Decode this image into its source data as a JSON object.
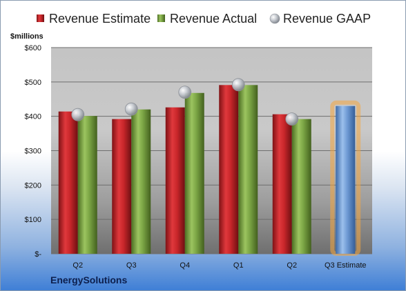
{
  "company": "EnergySolutions",
  "chart_data": {
    "type": "bar",
    "categories": [
      "Q2",
      "Q3",
      "Q4",
      "Q1",
      "Q2",
      "Q3 Estimate"
    ],
    "ylabel": "$millions",
    "ylim": [
      0,
      600
    ],
    "yticks": [
      0,
      100,
      200,
      300,
      400,
      500,
      600
    ],
    "ytick_labels": [
      "$-",
      "$100",
      "$200",
      "$300",
      "$400",
      "$500",
      "$600"
    ],
    "grid": true,
    "legend": "top",
    "series": [
      {
        "name": "Revenue Estimate",
        "kind": "bar",
        "color": "#c0262a",
        "values": [
          414,
          392,
          426,
          491,
          406,
          null
        ]
      },
      {
        "name": "Revenue Actual",
        "kind": "bar",
        "color": "#78a040",
        "values": [
          401,
          420,
          468,
          491,
          392,
          null
        ]
      },
      {
        "name": "Revenue GAAP",
        "kind": "marker",
        "color": "#b8bcc4",
        "values": [
          405,
          421,
          470,
          492,
          392,
          null
        ]
      },
      {
        "name": "Q3 Estimate",
        "kind": "highlight-bar",
        "color": "#6e9ad4",
        "glow": "#f4a640",
        "values": [
          null,
          null,
          null,
          null,
          null,
          430
        ]
      }
    ]
  }
}
